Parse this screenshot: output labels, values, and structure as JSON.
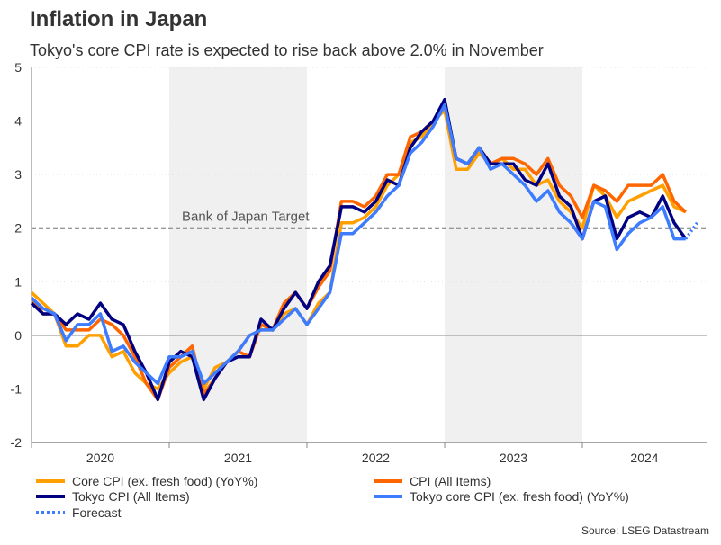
{
  "chart_data": {
    "type": "line",
    "title": "Inflation in Japan",
    "subtitle": "Tokyo's core CPI rate is expected to rise back above 2.0% in November",
    "source": "Source: LSEG Datastream",
    "ylim": [
      -2,
      5
    ],
    "yticks": [
      -2,
      -1,
      0,
      1,
      2,
      3,
      4,
      5
    ],
    "xlabels": [
      "2020",
      "2021",
      "2022",
      "2023",
      "2024"
    ],
    "shaded_years": [
      "2021",
      "2023"
    ],
    "grid": true,
    "x_start": "2020-01",
    "frequency": "monthly",
    "reference_line": {
      "label": "Bank of Japan Target",
      "value": 2
    },
    "legend_position": "bottom",
    "series": [
      {
        "name": "Core CPI (ex. fresh food) (YoY%)",
        "color": "#FF9F00",
        "values": [
          0.8,
          0.6,
          0.4,
          -0.2,
          -0.2,
          0.0,
          0.0,
          -0.4,
          -0.3,
          -0.7,
          -0.9,
          -1.0,
          -0.7,
          -0.5,
          -0.4,
          -1.0,
          -0.6,
          -0.5,
          -0.3,
          0.0,
          0.1,
          0.1,
          0.4,
          0.5,
          0.2,
          0.6,
          0.8,
          2.1,
          2.1,
          2.2,
          2.4,
          2.8,
          3.0,
          3.6,
          3.7,
          4.0,
          4.2,
          3.1,
          3.1,
          3.4,
          3.2,
          3.3,
          3.1,
          3.1,
          2.8,
          2.9,
          2.5,
          2.3,
          2.0,
          2.8,
          2.6,
          2.2,
          2.5,
          2.6,
          2.7,
          2.8,
          2.4,
          2.3
        ]
      },
      {
        "name": "CPI (All Items)",
        "color": "#FF6600",
        "values": [
          0.7,
          0.4,
          0.4,
          0.1,
          0.1,
          0.1,
          0.3,
          0.2,
          0.0,
          -0.4,
          -0.9,
          -1.2,
          -0.6,
          -0.4,
          -0.2,
          -1.1,
          -0.8,
          -0.5,
          -0.3,
          -0.4,
          0.2,
          0.1,
          0.6,
          0.8,
          0.5,
          0.9,
          1.2,
          2.5,
          2.5,
          2.4,
          2.6,
          3.0,
          3.0,
          3.7,
          3.8,
          4.0,
          4.3,
          3.3,
          3.2,
          3.5,
          3.2,
          3.3,
          3.3,
          3.2,
          3.0,
          3.3,
          2.8,
          2.6,
          2.2,
          2.8,
          2.7,
          2.5,
          2.8,
          2.8,
          2.8,
          3.0,
          2.5,
          2.3
        ]
      },
      {
        "name": "Tokyo CPI (All Items)",
        "color": "#000080",
        "values": [
          0.6,
          0.4,
          0.4,
          0.2,
          0.4,
          0.3,
          0.6,
          0.3,
          0.2,
          -0.3,
          -0.7,
          -1.2,
          -0.5,
          -0.3,
          -0.4,
          -1.2,
          -0.8,
          -0.5,
          -0.4,
          -0.4,
          0.3,
          0.1,
          0.5,
          0.8,
          0.5,
          1.0,
          1.3,
          2.4,
          2.4,
          2.3,
          2.5,
          2.9,
          2.8,
          3.5,
          3.8,
          4.0,
          4.4,
          3.3,
          3.2,
          3.5,
          3.2,
          3.2,
          3.2,
          2.9,
          2.8,
          3.2,
          2.6,
          2.4,
          1.8,
          2.5,
          2.6,
          1.8,
          2.2,
          2.3,
          2.2,
          2.6,
          2.1,
          1.8
        ]
      },
      {
        "name": "Tokyo core CPI (ex. fresh food) (YoY%)",
        "color": "#3D7BFF",
        "values": [
          0.7,
          0.5,
          0.4,
          -0.1,
          0.2,
          0.2,
          0.4,
          -0.3,
          -0.2,
          -0.5,
          -0.7,
          -0.9,
          -0.4,
          -0.4,
          -0.3,
          -0.9,
          -0.7,
          -0.5,
          -0.3,
          0.0,
          0.1,
          0.1,
          0.3,
          0.5,
          0.2,
          0.5,
          0.8,
          1.9,
          1.9,
          2.1,
          2.3,
          2.6,
          2.8,
          3.4,
          3.6,
          3.9,
          4.3,
          3.3,
          3.2,
          3.5,
          3.1,
          3.2,
          3.0,
          2.8,
          2.5,
          2.7,
          2.3,
          2.1,
          1.8,
          2.5,
          2.4,
          1.6,
          1.9,
          2.1,
          2.2,
          2.4,
          1.8,
          1.8
        ]
      }
    ],
    "forecast": {
      "name": "Forecast",
      "color": "#3D7BFF",
      "from": "2024-10",
      "to": "2024-11",
      "values": [
        1.8,
        2.1
      ]
    }
  }
}
